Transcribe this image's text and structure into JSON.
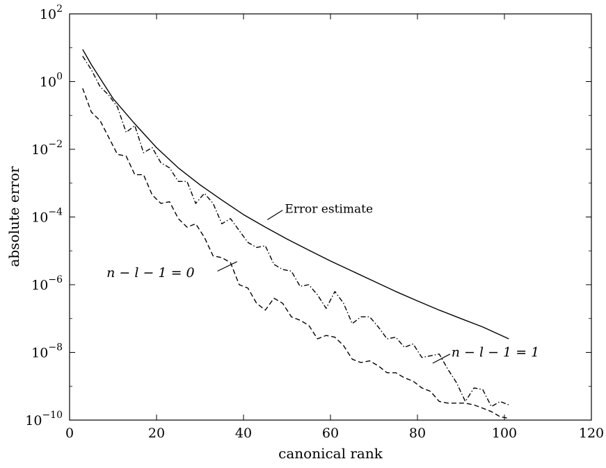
{
  "chart_data": {
    "type": "line",
    "title": "",
    "xlabel": "canonical rank",
    "ylabel": "absolute error",
    "xlim": [
      0,
      120
    ],
    "ylim_log10": [
      -10,
      2
    ],
    "yscale": "log",
    "grid": false,
    "x_ticks": [
      {
        "value": 0,
        "label": "0"
      },
      {
        "value": 20,
        "label": "20"
      },
      {
        "value": 40,
        "label": "40"
      },
      {
        "value": 60,
        "label": "60"
      },
      {
        "value": 80,
        "label": "80"
      },
      {
        "value": 100,
        "label": "100"
      },
      {
        "value": 120,
        "label": "120"
      }
    ],
    "y_ticks": [
      {
        "exp": 2,
        "base": "10",
        "sup": "2"
      },
      {
        "exp": 0,
        "base": "10",
        "sup": "0"
      },
      {
        "exp": -2,
        "base": "10",
        "sup": "−2"
      },
      {
        "exp": -4,
        "base": "10",
        "sup": "−4"
      },
      {
        "exp": -6,
        "base": "10",
        "sup": "−6"
      },
      {
        "exp": -8,
        "base": "10",
        "sup": "−8"
      },
      {
        "exp": -10,
        "base": "10",
        "sup": "−10"
      }
    ],
    "series": [
      {
        "key": "estimate",
        "style": "solid",
        "x": [
          3,
          5,
          7,
          10,
          15,
          20,
          25,
          30,
          35,
          40,
          45,
          50,
          55,
          60,
          65,
          70,
          75,
          80,
          85,
          90,
          95,
          101
        ],
        "log10_y": [
          0.95,
          0.5,
          0.1,
          -0.5,
          -1.25,
          -1.95,
          -2.55,
          -3.05,
          -3.5,
          -3.93,
          -4.3,
          -4.65,
          -4.98,
          -5.3,
          -5.6,
          -5.9,
          -6.2,
          -6.48,
          -6.75,
          -7.0,
          -7.25,
          -7.6
        ]
      },
      {
        "key": "n-l-1=1",
        "style": "dashdot",
        "x": [
          3,
          5,
          7,
          9,
          11,
          13,
          15,
          17,
          19,
          21,
          23,
          25,
          27,
          29,
          31,
          33,
          35,
          37,
          39,
          41,
          43,
          45,
          47,
          49,
          51,
          53,
          55,
          57,
          59,
          61,
          63,
          65,
          67,
          69,
          71,
          73,
          75,
          77,
          79,
          81,
          83,
          85,
          87,
          89,
          91,
          93,
          95,
          97,
          99,
          101
        ],
        "log10_y": [
          0.75,
          0.35,
          -0.15,
          -0.4,
          -0.75,
          -1.5,
          -1.3,
          -2.1,
          -1.95,
          -2.4,
          -2.55,
          -2.95,
          -2.95,
          -3.6,
          -3.3,
          -3.6,
          -4.2,
          -4.05,
          -4.4,
          -4.75,
          -4.9,
          -4.85,
          -5.4,
          -5.55,
          -5.6,
          -6.05,
          -6.0,
          -6.3,
          -6.7,
          -6.2,
          -6.55,
          -7.15,
          -6.95,
          -6.95,
          -7.25,
          -7.6,
          -7.55,
          -7.85,
          -7.75,
          -8.15,
          -8.1,
          -8.05,
          -8.5,
          -8.9,
          -9.45,
          -9.05,
          -9.1,
          -9.6,
          -9.45,
          -9.55
        ]
      },
      {
        "key": "n-l-1=0",
        "style": "dashed",
        "x": [
          3,
          5,
          7,
          9,
          11,
          13,
          15,
          17,
          19,
          21,
          23,
          25,
          27,
          29,
          31,
          33,
          35,
          37,
          39,
          41,
          43,
          45,
          47,
          49,
          51,
          53,
          55,
          57,
          59,
          61,
          63,
          65,
          67,
          69,
          71,
          73,
          75,
          77,
          79,
          81,
          83,
          85,
          87,
          89,
          91,
          93,
          95,
          97,
          99,
          101
        ],
        "log10_y": [
          -0.2,
          -0.9,
          -1.15,
          -1.65,
          -2.15,
          -2.2,
          -2.75,
          -2.75,
          -3.35,
          -3.6,
          -3.55,
          -4.05,
          -4.3,
          -4.2,
          -4.6,
          -5.15,
          -5.2,
          -5.35,
          -6.0,
          -6.1,
          -6.55,
          -6.75,
          -6.4,
          -6.55,
          -6.95,
          -7.05,
          -7.2,
          -7.6,
          -7.5,
          -7.55,
          -7.8,
          -8.2,
          -8.3,
          -8.25,
          -8.4,
          -8.6,
          -8.6,
          -8.75,
          -8.85,
          -9.05,
          -9.15,
          -9.45,
          -9.5,
          -9.5,
          -9.5,
          -9.55,
          -9.65,
          -9.75,
          -9.9,
          -9.95
        ]
      }
    ],
    "annotations": [
      {
        "key": "estimate",
        "text": "Error estimate",
        "math": false,
        "x": 49.5,
        "log10_y": -3.75,
        "leader_from": [
          49,
          -3.8
        ],
        "leader_to": [
          45.5,
          -4.08
        ],
        "anchor": "start"
      },
      {
        "key": "n-l-1=0",
        "text": "n − l − 1 = 0",
        "math": true,
        "x": 8.5,
        "log10_y": -5.65,
        "leader_from": [
          34,
          -5.6
        ],
        "leader_to": [
          38.5,
          -5.32
        ],
        "anchor": "start"
      },
      {
        "key": "n-l-1=1",
        "text": "n − l − 1 = 1",
        "math": true,
        "x": 87.8,
        "log10_y": -8.0,
        "leader_from": [
          87.5,
          -8.05
        ],
        "leader_to": [
          83.5,
          -8.32
        ],
        "anchor": "start"
      }
    ]
  }
}
